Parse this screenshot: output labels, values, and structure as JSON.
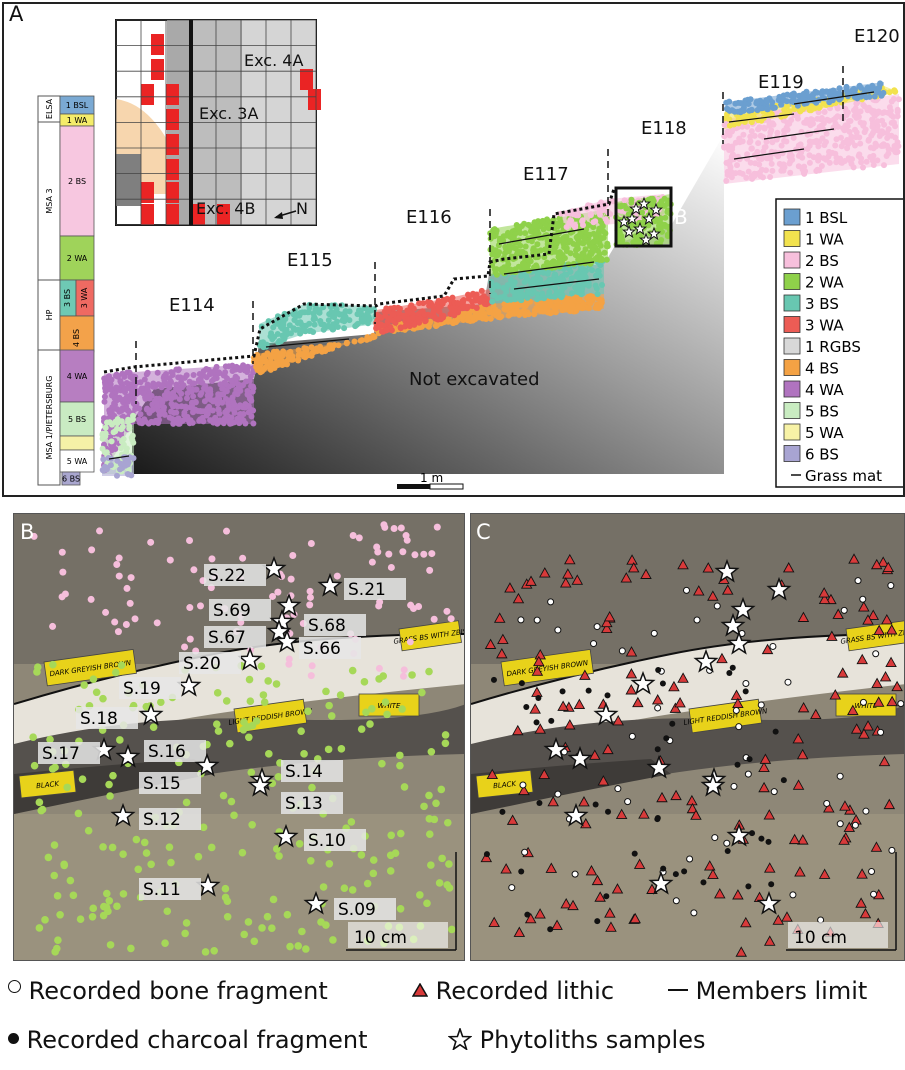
{
  "panel_a": {
    "label": "A",
    "sections": [
      "E114",
      "E115",
      "E116",
      "E117",
      "E118",
      "E119",
      "E120"
    ],
    "not_excavated": "Not excavated",
    "scale_bar": "1 m",
    "north": "N",
    "inset_box_label": "B",
    "grid_labels": {
      "exc4a": "Exc. 4A",
      "exc3a": "Exc. 3A",
      "exc4b": "Exc. 4B"
    },
    "strat_groups": [
      "ELSA",
      "MSA 3",
      "HP",
      "MSA 1/PIETERSBURG"
    ],
    "strat_units": [
      {
        "label": "1 BSL",
        "color": "#7aa9d3"
      },
      {
        "label": "1 WA",
        "color": "#f4ec6a"
      },
      {
        "label": "2 BS",
        "color": "#f7c7e0"
      },
      {
        "label": "2 WA",
        "color": "#9fd35a"
      },
      {
        "label": "3 BS",
        "color": "#6ec9b4"
      },
      {
        "label": "3 WA",
        "color": "#ef6a62"
      },
      {
        "label": "4 BS",
        "color": "#f3a24a"
      },
      {
        "label": "4 WA",
        "color": "#b77ec1"
      },
      {
        "label": "5 BS",
        "color": "#c9ebc2"
      },
      {
        "label": "",
        "color": "#f5f1a7"
      },
      {
        "label": "5 WA",
        "color": "#ffffff"
      },
      {
        "label": "6 BS",
        "color": "#a9a6cf"
      }
    ],
    "legend": [
      {
        "label": "1 BSL",
        "color": "#6b9fd0"
      },
      {
        "label": "1 WA",
        "color": "#f2e24e"
      },
      {
        "label": "2 BS",
        "color": "#f7bfdc"
      },
      {
        "label": "2 WA",
        "color": "#8fd14a"
      },
      {
        "label": "3 BS",
        "color": "#68c7b1"
      },
      {
        "label": "3 WA",
        "color": "#ec5c55"
      },
      {
        "label": "1 RGBS",
        "color": "#d8d8d8"
      },
      {
        "label": "4 BS",
        "color": "#f4a244"
      },
      {
        "label": "4 WA",
        "color": "#b073bf"
      },
      {
        "label": "5 BS",
        "color": "#c9ecc1"
      },
      {
        "label": "5 WA",
        "color": "#f7f2a6"
      },
      {
        "label": "6 BS",
        "color": "#a8a4d2"
      },
      {
        "label": "Grass mat",
        "color": "#000000",
        "line": true
      }
    ]
  },
  "panel_b": {
    "label": "B",
    "scale": "10 cm",
    "samples": [
      "S.22",
      "S.21",
      "S.69",
      "S.68",
      "S.67",
      "S.66",
      "S.20",
      "S.19",
      "S.18",
      "S.17",
      "S.16",
      "S.15",
      "S.14",
      "S.13",
      "S.12",
      "S.10",
      "S.11",
      "S.09"
    ],
    "tags": [
      "DARK GREYISH BROWN",
      "LIGHT REDDISH BROWN",
      "WHITE",
      "BLACK",
      "GRASS BS WITH ZBIS"
    ]
  },
  "panel_c": {
    "label": "C",
    "scale": "10 cm"
  },
  "bottom_legend": {
    "bone": "Recorded bone fragment",
    "lithic": "Recorded lithic",
    "members": "Members limit",
    "charcoal": "Recorded charcoal fragment",
    "phyto": "Phytoliths samples"
  }
}
